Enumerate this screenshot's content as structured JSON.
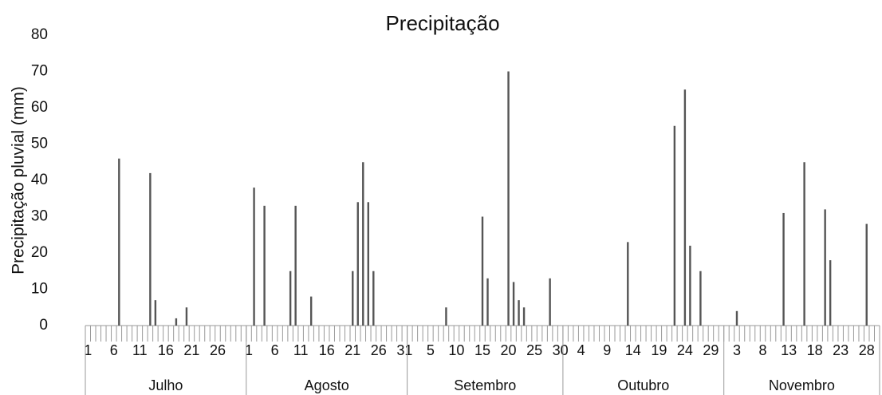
{
  "chart_data": {
    "type": "bar",
    "title": "Precipitação",
    "ylabel": "Precipitação pluvial (mm)",
    "ylim": [
      0,
      80
    ],
    "yticks": [
      0,
      10,
      20,
      30,
      40,
      50,
      60,
      70,
      80
    ],
    "color": "#555555",
    "groups": [
      {
        "label": "Julho",
        "categories": [
          "1",
          null,
          null,
          null,
          null,
          "6",
          null,
          null,
          null,
          null,
          "11",
          null,
          null,
          null,
          null,
          "16",
          null,
          null,
          null,
          null,
          "21",
          null,
          null,
          null,
          null,
          "26",
          null,
          null,
          null,
          null,
          null
        ]
      },
      {
        "label": "Agosto",
        "categories": [
          "1",
          null,
          null,
          null,
          null,
          "6",
          null,
          null,
          null,
          null,
          "11",
          null,
          null,
          null,
          null,
          "16",
          null,
          null,
          null,
          null,
          "21",
          null,
          null,
          null,
          null,
          "26",
          null,
          null,
          null,
          null,
          "31"
        ]
      },
      {
        "label": "Setembro",
        "categories": [
          null,
          null,
          null,
          null,
          "5",
          null,
          null,
          null,
          null,
          "10",
          null,
          null,
          null,
          null,
          "15",
          null,
          null,
          null,
          null,
          "20",
          null,
          null,
          null,
          null,
          "25",
          null,
          null,
          null,
          null,
          "30"
        ]
      },
      {
        "label": "Outubro",
        "categories": [
          null,
          null,
          null,
          "4",
          null,
          null,
          null,
          null,
          "9",
          null,
          null,
          null,
          null,
          "14",
          null,
          null,
          null,
          null,
          "19",
          null,
          null,
          null,
          null,
          "24",
          null,
          null,
          null,
          null,
          "29",
          null,
          null
        ]
      },
      {
        "label": "Novembro",
        "categories": [
          null,
          null,
          "3",
          null,
          null,
          null,
          null,
          "8",
          null,
          null,
          null,
          null,
          "13",
          null,
          null,
          null,
          null,
          "18",
          null,
          null,
          null,
          null,
          "23",
          null,
          null,
          null,
          null,
          "28",
          null,
          null
        ]
      }
    ],
    "values": [
      0,
      0,
      0,
      0,
      0,
      0,
      46,
      0,
      0,
      0,
      0,
      0,
      42,
      7,
      0,
      0,
      0,
      2,
      0,
      5,
      0,
      0,
      0,
      0,
      0,
      0,
      0,
      0,
      0,
      0,
      0,
      0,
      38,
      0,
      33,
      0,
      0,
      0,
      0,
      15,
      33,
      0,
      0,
      8,
      0,
      0,
      0,
      0,
      0,
      0,
      0,
      15,
      34,
      45,
      34,
      15,
      0,
      0,
      0,
      0,
      0,
      0,
      0,
      0,
      0,
      0,
      0,
      0,
      0,
      5,
      0,
      0,
      0,
      0,
      0,
      0,
      30,
      13,
      0,
      0,
      0,
      70,
      12,
      7,
      5,
      0,
      0,
      0,
      0,
      13,
      0,
      0,
      0,
      0,
      0,
      0,
      0,
      0,
      0,
      0,
      0,
      0,
      0,
      0,
      23,
      0,
      0,
      0,
      0,
      0,
      0,
      0,
      0,
      55,
      0,
      65,
      22,
      0,
      15,
      0,
      0,
      0,
      0,
      0,
      0,
      4,
      0,
      0,
      0,
      0,
      0,
      0,
      0,
      0,
      31,
      0,
      0,
      0,
      45,
      0,
      0,
      0,
      32,
      18,
      0,
      0,
      0,
      0,
      0,
      0,
      28,
      0,
      0
    ]
  }
}
